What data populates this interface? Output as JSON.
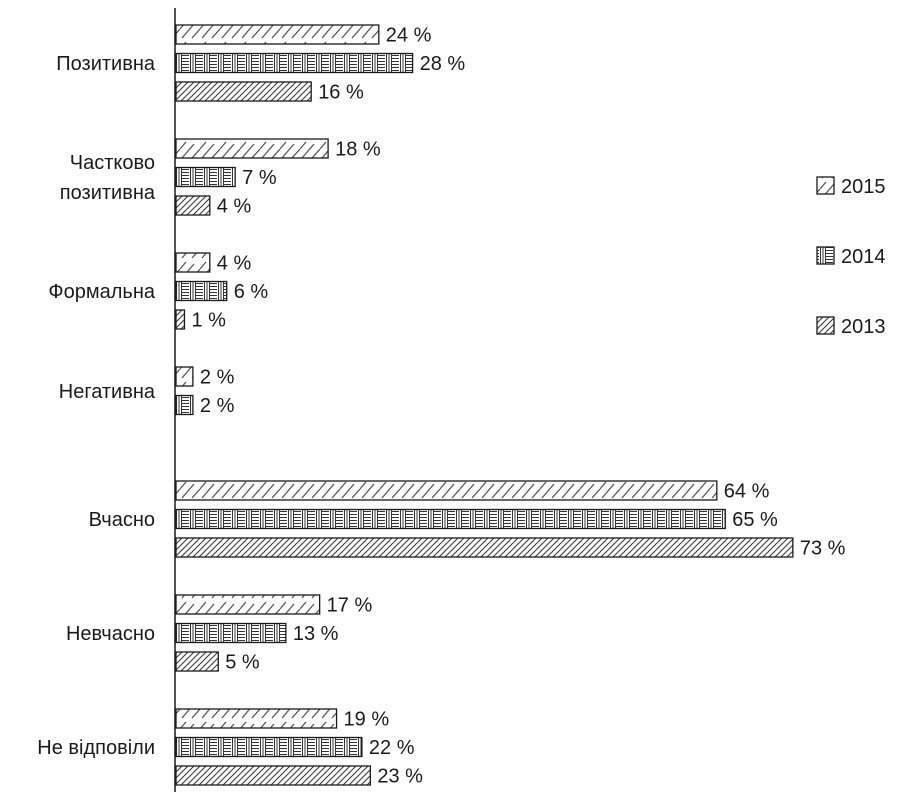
{
  "chart_data": {
    "type": "bar",
    "orientation": "horizontal",
    "categories": [
      "Позитивна",
      "Частково позитивна",
      "Формальна",
      "Негативна",
      "Вчасно",
      "Невчасно",
      "Не відповіли"
    ],
    "series": [
      {
        "name": "2015",
        "pattern": "dashed-diagonal",
        "values": [
          24,
          18,
          4,
          2,
          64,
          17,
          19
        ]
      },
      {
        "name": "2014",
        "pattern": "horizontal-vertical-stripes",
        "values": [
          28,
          7,
          6,
          2,
          65,
          13,
          22
        ]
      },
      {
        "name": "2013",
        "pattern": "diagonal-hatch",
        "values": [
          16,
          4,
          1,
          null,
          73,
          5,
          23
        ]
      }
    ],
    "value_suffix": " %",
    "xlim": [
      0,
      80
    ],
    "grid": false,
    "legend_position": "right",
    "colors": {
      "outline": "#1a1a1a",
      "background": "#ffffff"
    }
  }
}
